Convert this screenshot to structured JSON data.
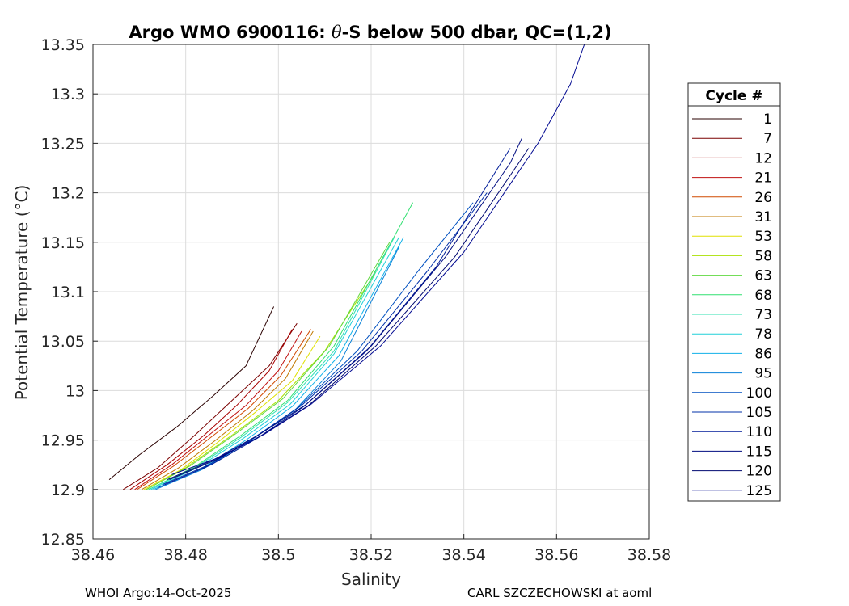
{
  "chart_data": {
    "type": "line",
    "title_prefix": "Argo WMO 6900116: ",
    "title_symbol": "θ",
    "title_suffix": "-S below 500 dbar,  QC=(1,2)",
    "xlabel": "Salinity",
    "ylabel": "Potential Temperature (°C)",
    "xlim": [
      38.46,
      38.58
    ],
    "ylim": [
      12.85,
      13.35
    ],
    "xticks": [
      "38.46",
      "38.48",
      "38.5",
      "38.52",
      "38.54",
      "38.56",
      "38.58"
    ],
    "yticks": [
      "12.85",
      "12.9",
      "12.95",
      "13",
      "13.05",
      "13.1",
      "13.15",
      "13.2",
      "13.25",
      "13.3",
      "13.35"
    ],
    "grid": true,
    "legend": {
      "title": "Cycle #",
      "position": "right",
      "entries": [
        "1",
        "7",
        "12",
        "21",
        "26",
        "31",
        "53",
        "58",
        "63",
        "68",
        "73",
        "78",
        "86",
        "95",
        "100",
        "105",
        "110",
        "115",
        "120",
        "125"
      ],
      "colors": [
        "#2a0000",
        "#7a0000",
        "#a80000",
        "#c01010",
        "#d04a00",
        "#c07800",
        "#e0e000",
        "#a8e000",
        "#60d840",
        "#30e070",
        "#30e0b0",
        "#20d0d8",
        "#10b0e8",
        "#0880d8",
        "#0050c0",
        "#0030a8",
        "#001c98",
        "#000c80",
        "#000870",
        "#000890"
      ]
    },
    "series": [
      {
        "name": "1",
        "x": [
          38.4635,
          38.47,
          38.478,
          38.486,
          38.493,
          38.499
        ],
        "y": [
          12.91,
          12.935,
          12.963,
          12.995,
          13.025,
          13.085
        ]
      },
      {
        "name": "7",
        "x": [
          38.4665,
          38.474,
          38.482,
          38.49,
          38.498,
          38.504
        ],
        "y": [
          12.9,
          12.922,
          12.955,
          12.99,
          13.025,
          13.068
        ]
      },
      {
        "name": "12",
        "x": [
          38.468,
          38.476,
          38.484,
          38.491,
          38.498,
          38.503
        ],
        "y": [
          12.9,
          12.925,
          12.955,
          12.985,
          13.02,
          13.062
        ]
      },
      {
        "name": "21",
        "x": [
          38.469,
          38.477,
          38.485,
          38.493,
          38.5,
          38.505
        ],
        "y": [
          12.9,
          12.925,
          12.955,
          12.985,
          13.02,
          13.06
        ]
      },
      {
        "name": "26",
        "x": [
          38.4695,
          38.4775,
          38.4855,
          38.4935,
          38.5005,
          38.507
        ],
        "y": [
          12.9,
          12.924,
          12.953,
          12.982,
          13.015,
          13.062
        ]
      },
      {
        "name": "31",
        "x": [
          38.4705,
          38.4785,
          38.4865,
          38.4945,
          38.5015,
          38.5075
        ],
        "y": [
          12.9,
          12.922,
          12.95,
          12.98,
          13.012,
          13.06
        ]
      },
      {
        "name": "53",
        "x": [
          38.471,
          38.479,
          38.487,
          38.495,
          38.503,
          38.509
        ],
        "y": [
          12.9,
          12.92,
          12.948,
          12.978,
          13.01,
          13.055
        ]
      },
      {
        "name": "58",
        "x": [
          38.4715,
          38.48,
          38.49,
          38.5,
          38.51,
          38.521
        ],
        "y": [
          12.9,
          12.922,
          12.955,
          12.99,
          13.04,
          13.12
        ]
      },
      {
        "name": "63",
        "x": [
          38.4715,
          38.481,
          38.491,
          38.501,
          38.511,
          38.524
        ],
        "y": [
          12.9,
          12.924,
          12.957,
          12.992,
          13.045,
          13.15
        ]
      },
      {
        "name": "68",
        "x": [
          38.472,
          38.482,
          38.492,
          38.502,
          38.512,
          38.529
        ],
        "y": [
          12.9,
          12.923,
          12.955,
          12.99,
          13.045,
          13.19
        ]
      },
      {
        "name": "73",
        "x": [
          38.472,
          38.482,
          38.492,
          38.502,
          38.512,
          38.525
        ],
        "y": [
          12.9,
          12.922,
          12.953,
          12.988,
          13.04,
          13.155
        ]
      },
      {
        "name": "78",
        "x": [
          38.4725,
          38.4825,
          38.4925,
          38.5025,
          38.512,
          38.526
        ],
        "y": [
          12.9,
          12.922,
          12.952,
          12.986,
          13.037,
          13.155
        ]
      },
      {
        "name": "86",
        "x": [
          38.473,
          38.483,
          38.493,
          38.503,
          38.513,
          38.527
        ],
        "y": [
          12.9,
          12.92,
          12.95,
          12.984,
          13.035,
          13.155
        ]
      },
      {
        "name": "95",
        "x": [
          38.4735,
          38.4835,
          38.4935,
          38.5035,
          38.5135,
          38.526
        ],
        "y": [
          12.9,
          12.92,
          12.948,
          12.98,
          13.03,
          13.145
        ]
      },
      {
        "name": "100",
        "x": [
          38.474,
          38.484,
          38.494,
          38.504,
          38.517,
          38.53,
          38.542
        ],
        "y": [
          12.902,
          12.922,
          12.95,
          12.982,
          13.04,
          13.12,
          13.19
        ]
      },
      {
        "name": "105",
        "x": [
          38.475,
          38.485,
          38.495,
          38.505,
          38.518,
          38.532,
          38.545
        ],
        "y": [
          12.905,
          12.925,
          12.953,
          12.985,
          13.04,
          13.12,
          13.2
        ]
      },
      {
        "name": "110",
        "x": [
          38.4755,
          38.4855,
          38.4955,
          38.5055,
          38.519,
          38.534,
          38.55
        ],
        "y": [
          12.905,
          12.925,
          12.952,
          12.984,
          13.04,
          13.125,
          13.245
        ]
      },
      {
        "name": "115",
        "x": [
          38.476,
          38.486,
          38.496,
          38.506,
          38.52,
          38.536,
          38.55,
          38.5525
        ],
        "y": [
          12.91,
          12.93,
          12.956,
          12.986,
          13.045,
          13.135,
          13.23,
          13.255
        ]
      },
      {
        "name": "120",
        "x": [
          38.4765,
          38.4865,
          38.4965,
          38.5065,
          38.521,
          38.538,
          38.554
        ],
        "y": [
          12.91,
          12.93,
          12.955,
          12.985,
          13.045,
          13.135,
          13.245
        ]
      },
      {
        "name": "125",
        "x": [
          38.477,
          38.487,
          38.497,
          38.507,
          38.522,
          38.54,
          38.556,
          38.563,
          38.566
        ],
        "y": [
          12.915,
          12.932,
          12.956,
          12.986,
          13.045,
          13.14,
          13.25,
          13.31,
          13.35
        ]
      }
    ]
  },
  "footer": {
    "left": "WHOI Argo:14-Oct-2025",
    "right": "CARL SZCZECHOWSKI at aoml"
  }
}
